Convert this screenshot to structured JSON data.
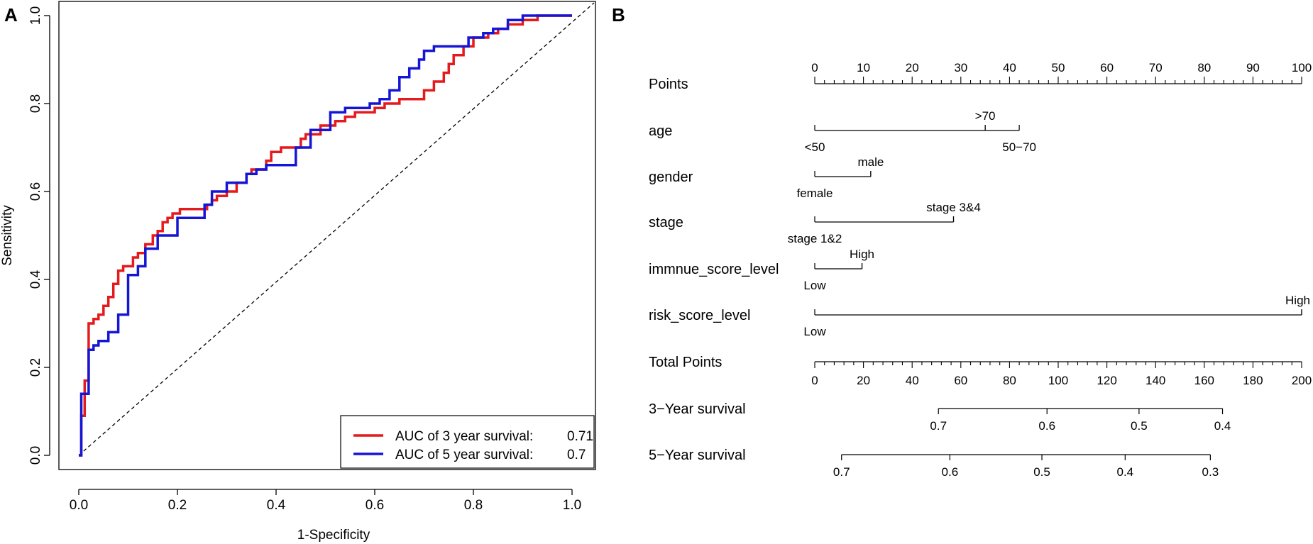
{
  "chart_data": [
    {
      "panel": "A",
      "type": "line",
      "xlabel": "1-Specificity",
      "ylabel": "Sensitivity",
      "xlim": [
        0,
        1
      ],
      "ylim": [
        0,
        1
      ],
      "xticks": [
        "0.0",
        "0.2",
        "0.4",
        "0.6",
        "0.8",
        "1.0"
      ],
      "yticks": [
        "0.0",
        "0.2",
        "0.4",
        "0.6",
        "0.8",
        "1.0"
      ],
      "reference_line": "diagonal dashed",
      "legend": {
        "placement": "bottom-right",
        "entries": [
          {
            "label": "AUC of 3 year survival:",
            "value": "0.71",
            "color": "#e41a1c"
          },
          {
            "label": "AUC of 5 year survival:",
            "value": "0.7",
            "color": "#1515d6"
          }
        ]
      },
      "series": [
        {
          "name": "AUC of 3 year survival",
          "color": "#e41a1c",
          "x": [
            0,
            0.005,
            0.005,
            0.012,
            0.012,
            0.02,
            0.02,
            0.03,
            0.03,
            0.04,
            0.04,
            0.05,
            0.05,
            0.06,
            0.06,
            0.07,
            0.07,
            0.08,
            0.08,
            0.09,
            0.09,
            0.11,
            0.11,
            0.12,
            0.12,
            0.135,
            0.135,
            0.15,
            0.15,
            0.16,
            0.16,
            0.17,
            0.17,
            0.18,
            0.18,
            0.19,
            0.19,
            0.205,
            0.205,
            0.26,
            0.26,
            0.27,
            0.27,
            0.28,
            0.28,
            0.3,
            0.3,
            0.32,
            0.32,
            0.34,
            0.34,
            0.35,
            0.35,
            0.38,
            0.38,
            0.39,
            0.39,
            0.41,
            0.41,
            0.45,
            0.45,
            0.46,
            0.46,
            0.49,
            0.49,
            0.52,
            0.52,
            0.54,
            0.54,
            0.56,
            0.56,
            0.6,
            0.6,
            0.62,
            0.62,
            0.65,
            0.65,
            0.7,
            0.7,
            0.72,
            0.72,
            0.74,
            0.74,
            0.75,
            0.75,
            0.76,
            0.76,
            0.78,
            0.78,
            0.8,
            0.8,
            0.83,
            0.83,
            0.85,
            0.85,
            0.87,
            0.87,
            0.9,
            0.9,
            0.93,
            0.93,
            0.96,
            0.96,
            1
          ],
          "y": [
            0,
            0,
            0.09,
            0.09,
            0.17,
            0.17,
            0.3,
            0.3,
            0.31,
            0.31,
            0.32,
            0.32,
            0.34,
            0.34,
            0.36,
            0.36,
            0.39,
            0.39,
            0.42,
            0.42,
            0.43,
            0.43,
            0.45,
            0.45,
            0.46,
            0.46,
            0.48,
            0.48,
            0.5,
            0.5,
            0.51,
            0.51,
            0.53,
            0.53,
            0.54,
            0.54,
            0.55,
            0.55,
            0.56,
            0.56,
            0.57,
            0.57,
            0.58,
            0.58,
            0.59,
            0.59,
            0.6,
            0.6,
            0.62,
            0.62,
            0.64,
            0.64,
            0.65,
            0.65,
            0.67,
            0.67,
            0.69,
            0.69,
            0.7,
            0.7,
            0.72,
            0.72,
            0.73,
            0.73,
            0.75,
            0.75,
            0.76,
            0.76,
            0.77,
            0.77,
            0.78,
            0.78,
            0.79,
            0.79,
            0.8,
            0.8,
            0.81,
            0.81,
            0.83,
            0.83,
            0.85,
            0.85,
            0.87,
            0.87,
            0.89,
            0.89,
            0.91,
            0.91,
            0.93,
            0.93,
            0.95,
            0.95,
            0.96,
            0.96,
            0.97,
            0.97,
            0.98,
            0.98,
            0.99,
            0.99,
            1,
            1,
            1,
            1
          ]
        },
        {
          "name": "AUC of 5 year survival",
          "color": "#1515d6",
          "x": [
            0,
            0.005,
            0.005,
            0.02,
            0.02,
            0.03,
            0.03,
            0.04,
            0.04,
            0.06,
            0.06,
            0.08,
            0.08,
            0.1,
            0.1,
            0.12,
            0.12,
            0.135,
            0.135,
            0.16,
            0.16,
            0.2,
            0.2,
            0.255,
            0.255,
            0.27,
            0.27,
            0.3,
            0.3,
            0.34,
            0.34,
            0.36,
            0.36,
            0.38,
            0.38,
            0.44,
            0.44,
            0.47,
            0.47,
            0.51,
            0.51,
            0.54,
            0.54,
            0.59,
            0.59,
            0.61,
            0.61,
            0.63,
            0.63,
            0.65,
            0.65,
            0.67,
            0.67,
            0.69,
            0.69,
            0.7,
            0.7,
            0.72,
            0.72,
            0.74,
            0.74,
            0.79,
            0.79,
            0.82,
            0.82,
            0.84,
            0.84,
            0.87,
            0.87,
            0.9,
            0.9,
            0.93,
            0.93,
            0.96,
            0.96,
            1
          ],
          "y": [
            0,
            0,
            0.14,
            0.14,
            0.24,
            0.24,
            0.25,
            0.25,
            0.26,
            0.26,
            0.28,
            0.28,
            0.32,
            0.32,
            0.41,
            0.41,
            0.43,
            0.43,
            0.47,
            0.47,
            0.5,
            0.5,
            0.54,
            0.54,
            0.57,
            0.57,
            0.6,
            0.6,
            0.62,
            0.62,
            0.64,
            0.64,
            0.65,
            0.65,
            0.66,
            0.66,
            0.7,
            0.7,
            0.74,
            0.74,
            0.78,
            0.78,
            0.79,
            0.79,
            0.8,
            0.8,
            0.81,
            0.81,
            0.83,
            0.83,
            0.86,
            0.86,
            0.88,
            0.88,
            0.9,
            0.9,
            0.92,
            0.92,
            0.93,
            0.93,
            0.93,
            0.93,
            0.95,
            0.95,
            0.96,
            0.96,
            0.97,
            0.97,
            0.99,
            0.99,
            1,
            1,
            1,
            1,
            1,
            1
          ]
        }
      ]
    },
    {
      "panel": "B",
      "type": "nomogram",
      "points_scale": {
        "label": "Points",
        "min": 0,
        "max": 100,
        "ticks": [
          "0",
          "10",
          "20",
          "30",
          "40",
          "50",
          "60",
          "70",
          "80",
          "90",
          "100"
        ]
      },
      "variables": [
        {
          "name": "age",
          "max_points": 42,
          "levels": [
            {
              "label": "<50",
              "points": 0,
              "pos": "below"
            },
            {
              "label": ">70",
              "points": 35,
              "pos": "above"
            },
            {
              "label": "50−70",
              "points": 42,
              "pos": "below"
            }
          ]
        },
        {
          "name": "gender",
          "max_points": 11.5,
          "levels": [
            {
              "label": "female",
              "points": 0,
              "pos": "below"
            },
            {
              "label": "male",
              "points": 11.5,
              "pos": "above"
            }
          ]
        },
        {
          "name": "stage",
          "max_points": 28.5,
          "levels": [
            {
              "label": "stage 1&2",
              "points": 0,
              "pos": "below"
            },
            {
              "label": "stage 3&4",
              "points": 28.5,
              "pos": "above"
            }
          ]
        },
        {
          "name": "immnue_score_level",
          "max_points": 9.7,
          "levels": [
            {
              "label": "Low",
              "points": 0,
              "pos": "below"
            },
            {
              "label": "High",
              "points": 9.7,
              "pos": "above"
            }
          ]
        },
        {
          "name": "risk_score_level",
          "max_points": 100,
          "levels": [
            {
              "label": "Low",
              "points": 0,
              "pos": "below"
            },
            {
              "label": "High",
              "points": 100,
              "pos": "above"
            }
          ]
        }
      ],
      "total_points": {
        "label": "Total Points",
        "min": 0,
        "max": 200,
        "ticks": [
          "0",
          "20",
          "40",
          "60",
          "80",
          "100",
          "120",
          "140",
          "160",
          "180",
          "200"
        ]
      },
      "survival_scales": [
        {
          "label": "3−Year survival",
          "start": 50.8,
          "end": 167.5,
          "ticks": [
            {
              "label": "0.7",
              "total": 50.8
            },
            {
              "label": "0.6",
              "total": 95.4
            },
            {
              "label": "0.5",
              "total": 133.2
            },
            {
              "label": "0.4",
              "total": 167.5
            }
          ]
        },
        {
          "label": "5−Year survival",
          "start": 11,
          "end": 162.5,
          "ticks": [
            {
              "label": "0.7",
              "total": 11
            },
            {
              "label": "0.6",
              "total": 55.5
            },
            {
              "label": "0.5",
              "total": 93.3
            },
            {
              "label": "0.4",
              "total": 127.5
            },
            {
              "label": "0.3",
              "total": 162.5
            }
          ]
        }
      ]
    }
  ],
  "panel_labels": [
    "A",
    "B"
  ]
}
